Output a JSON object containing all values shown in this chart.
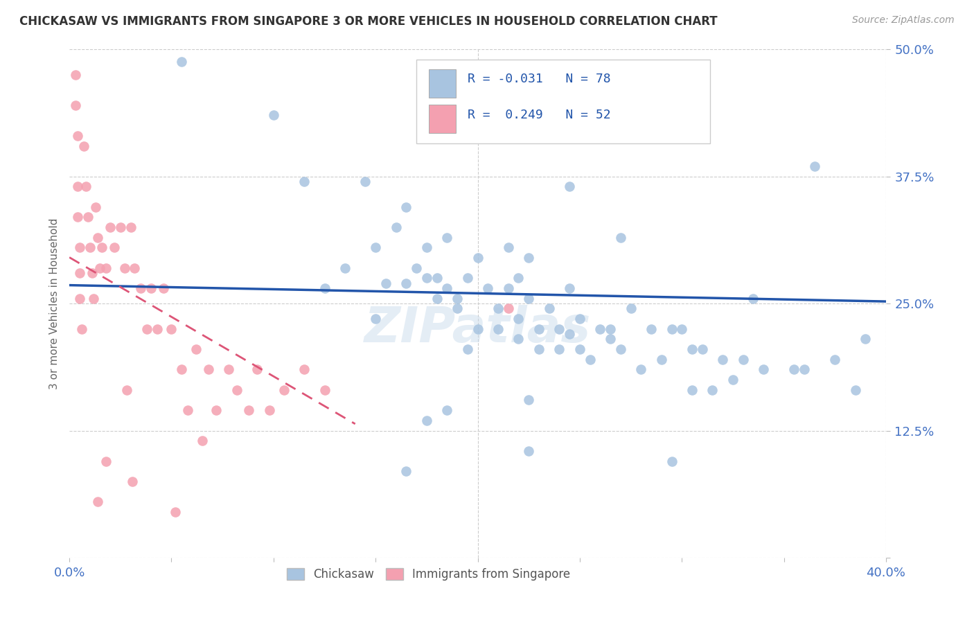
{
  "title": "CHICKASAW VS IMMIGRANTS FROM SINGAPORE 3 OR MORE VEHICLES IN HOUSEHOLD CORRELATION CHART",
  "source": "Source: ZipAtlas.com",
  "ylabel": "3 or more Vehicles in Household",
  "xlim": [
    0.0,
    0.4
  ],
  "ylim": [
    0.0,
    0.5
  ],
  "xticks": [
    0.0,
    0.05,
    0.1,
    0.15,
    0.2,
    0.25,
    0.3,
    0.35,
    0.4
  ],
  "yticks": [
    0.0,
    0.125,
    0.25,
    0.375,
    0.5
  ],
  "yticklabels": [
    "",
    "12.5%",
    "25.0%",
    "37.5%",
    "50.0%"
  ],
  "blue_R": -0.031,
  "blue_N": 78,
  "pink_R": 0.249,
  "pink_N": 52,
  "blue_color": "#a8c4e0",
  "pink_color": "#f4a0b0",
  "blue_line_color": "#2255aa",
  "pink_line_color": "#dd5577",
  "watermark": "ZIPatlas",
  "blue_scatter_x": [
    0.055,
    0.1,
    0.115,
    0.135,
    0.145,
    0.15,
    0.155,
    0.16,
    0.165,
    0.165,
    0.17,
    0.175,
    0.175,
    0.18,
    0.18,
    0.185,
    0.185,
    0.19,
    0.19,
    0.195,
    0.2,
    0.2,
    0.205,
    0.21,
    0.21,
    0.215,
    0.215,
    0.22,
    0.22,
    0.22,
    0.225,
    0.225,
    0.23,
    0.23,
    0.235,
    0.24,
    0.24,
    0.245,
    0.245,
    0.25,
    0.25,
    0.255,
    0.26,
    0.265,
    0.27,
    0.275,
    0.28,
    0.285,
    0.29,
    0.295,
    0.3,
    0.305,
    0.31,
    0.315,
    0.32,
    0.325,
    0.33,
    0.34,
    0.355,
    0.36,
    0.365,
    0.375,
    0.385,
    0.39,
    0.295,
    0.15,
    0.175,
    0.225,
    0.27,
    0.125,
    0.335,
    0.245,
    0.195,
    0.165,
    0.305,
    0.265,
    0.225,
    0.185
  ],
  "blue_scatter_y": [
    0.488,
    0.435,
    0.37,
    0.285,
    0.37,
    0.305,
    0.27,
    0.325,
    0.345,
    0.27,
    0.285,
    0.275,
    0.305,
    0.255,
    0.275,
    0.315,
    0.265,
    0.245,
    0.255,
    0.275,
    0.295,
    0.225,
    0.265,
    0.245,
    0.225,
    0.265,
    0.305,
    0.215,
    0.235,
    0.275,
    0.255,
    0.295,
    0.205,
    0.225,
    0.245,
    0.205,
    0.225,
    0.265,
    0.22,
    0.205,
    0.235,
    0.195,
    0.225,
    0.215,
    0.205,
    0.245,
    0.185,
    0.225,
    0.195,
    0.225,
    0.225,
    0.165,
    0.205,
    0.165,
    0.195,
    0.175,
    0.195,
    0.185,
    0.185,
    0.185,
    0.385,
    0.195,
    0.165,
    0.215,
    0.095,
    0.235,
    0.135,
    0.105,
    0.315,
    0.265,
    0.255,
    0.365,
    0.205,
    0.085,
    0.205,
    0.225,
    0.155,
    0.145
  ],
  "pink_scatter_x": [
    0.003,
    0.003,
    0.004,
    0.004,
    0.004,
    0.005,
    0.005,
    0.005,
    0.006,
    0.007,
    0.008,
    0.009,
    0.01,
    0.011,
    0.012,
    0.013,
    0.014,
    0.015,
    0.016,
    0.018,
    0.02,
    0.022,
    0.025,
    0.027,
    0.03,
    0.032,
    0.035,
    0.038,
    0.04,
    0.043,
    0.046,
    0.05,
    0.055,
    0.058,
    0.062,
    0.068,
    0.072,
    0.078,
    0.082,
    0.088,
    0.092,
    0.098,
    0.105,
    0.115,
    0.125,
    0.028,
    0.065,
    0.018,
    0.014,
    0.031,
    0.052,
    0.215
  ],
  "pink_scatter_y": [
    0.475,
    0.445,
    0.415,
    0.365,
    0.335,
    0.305,
    0.28,
    0.255,
    0.225,
    0.405,
    0.365,
    0.335,
    0.305,
    0.28,
    0.255,
    0.345,
    0.315,
    0.285,
    0.305,
    0.285,
    0.325,
    0.305,
    0.325,
    0.285,
    0.325,
    0.285,
    0.265,
    0.225,
    0.265,
    0.225,
    0.265,
    0.225,
    0.185,
    0.145,
    0.205,
    0.185,
    0.145,
    0.185,
    0.165,
    0.145,
    0.185,
    0.145,
    0.165,
    0.185,
    0.165,
    0.165,
    0.115,
    0.095,
    0.055,
    0.075,
    0.045,
    0.245
  ],
  "pink_line_x_start": 0.0,
  "pink_line_x_end": 0.14,
  "blue_line_y_start": 0.268,
  "blue_line_y_end": 0.252
}
